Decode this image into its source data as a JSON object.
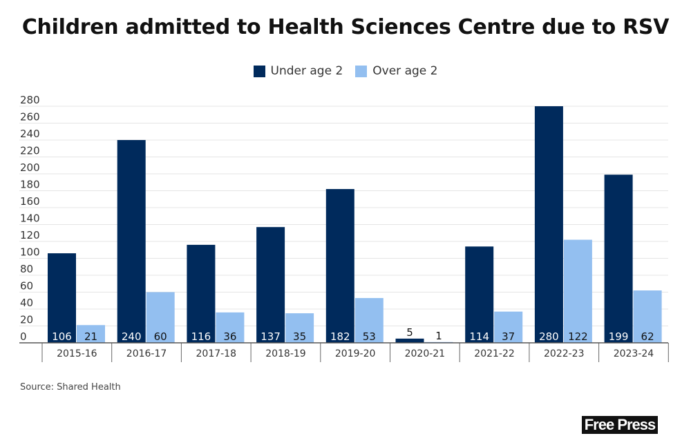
{
  "chart_data": {
    "type": "bar",
    "title": "Children admitted to Health Sciences Centre due to RSV",
    "categories": [
      "2015-16",
      "2016-17",
      "2017-18",
      "2018-19",
      "2019-20",
      "2020-21",
      "2021-22",
      "2022-23",
      "2023-24"
    ],
    "series": [
      {
        "name": "Under age 2",
        "color": "#002a5c",
        "values": [
          106,
          240,
          116,
          137,
          182,
          5,
          114,
          280,
          199
        ]
      },
      {
        "name": "Over age 2",
        "color": "#93bff0",
        "values": [
          21,
          60,
          36,
          35,
          53,
          1,
          37,
          122,
          62
        ]
      }
    ],
    "yticks": [
      0,
      20,
      40,
      60,
      80,
      100,
      120,
      140,
      160,
      180,
      200,
      220,
      240,
      260,
      280
    ],
    "ylim": [
      0,
      280
    ],
    "grid": true,
    "legend": "top-center",
    "xlabel": "",
    "ylabel": ""
  },
  "source": "Source: Shared Health",
  "logo": "Free Press"
}
